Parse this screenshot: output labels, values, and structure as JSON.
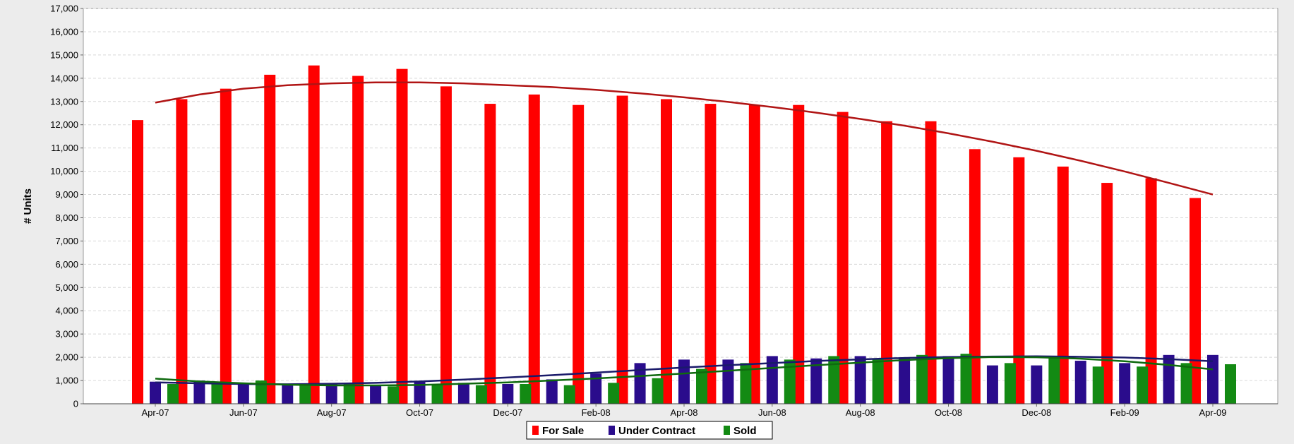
{
  "chart_data": {
    "type": "bar",
    "title": "",
    "xlabel": "",
    "ylabel": "# Units",
    "ylim": [
      0,
      17000
    ],
    "y_ticks": [
      0,
      1000,
      2000,
      3000,
      4000,
      5000,
      6000,
      7000,
      8000,
      9000,
      10000,
      11000,
      12000,
      13000,
      14000,
      15000,
      16000,
      17000
    ],
    "y_tick_labels": [
      "0",
      "1,000",
      "2,000",
      "3,000",
      "4,000",
      "5,000",
      "6,000",
      "7,000",
      "8,000",
      "9,000",
      "10,000",
      "11,000",
      "12,000",
      "13,000",
      "14,000",
      "15,000",
      "16,000",
      "17,000"
    ],
    "categories": [
      "Apr-07",
      "May-07",
      "Jun-07",
      "Jul-07",
      "Aug-07",
      "Sep-07",
      "Oct-07",
      "Nov-07",
      "Dec-07",
      "Jan-08",
      "Feb-08",
      "Mar-08",
      "Apr-08",
      "May-08",
      "Jun-08",
      "Jul-08",
      "Aug-08",
      "Sep-08",
      "Oct-08",
      "Nov-08",
      "Dec-08",
      "Jan-09",
      "Feb-09",
      "Mar-09",
      "Apr-09"
    ],
    "x_tick_labels": [
      "Apr-07",
      "",
      "Jun-07",
      "",
      "Aug-07",
      "",
      "Oct-07",
      "",
      "Dec-07",
      "",
      "Feb-08",
      "",
      "Apr-08",
      "",
      "Jun-08",
      "",
      "Aug-08",
      "",
      "Oct-08",
      "",
      "Dec-08",
      "",
      "Feb-09",
      "",
      "Apr-09"
    ],
    "series": [
      {
        "name": "For Sale",
        "color": "#ff0000",
        "values": [
          12200,
          13100,
          13550,
          14150,
          14550,
          14100,
          14400,
          13650,
          12900,
          13300,
          12850,
          13250,
          13100,
          12900,
          12850,
          12850,
          12550,
          12150,
          12150,
          10950,
          10600,
          10200,
          9500,
          9700,
          8850
        ]
      },
      {
        "name": "Under Contract",
        "color": "#2a0c8c",
        "values": [
          950,
          1000,
          850,
          850,
          850,
          800,
          950,
          900,
          850,
          1050,
          1300,
          1750,
          1900,
          1900,
          2050,
          1950,
          2050,
          1950,
          2050,
          1650,
          1650,
          1850,
          1750,
          2100,
          2100
        ]
      },
      {
        "name": "Sold",
        "color": "#138a13",
        "values": [
          850,
          950,
          1000,
          850,
          850,
          750,
          850,
          800,
          850,
          800,
          900,
          1100,
          1500,
          1750,
          1900,
          2050,
          1950,
          2100,
          2150,
          1750,
          2000,
          1600,
          1600,
          1750,
          1700
        ]
      }
    ],
    "trend_lines": [
      {
        "series": "For Sale",
        "color": "#b01414",
        "values": [
          12950,
          13300,
          13550,
          13700,
          13780,
          13820,
          13820,
          13780,
          13700,
          13620,
          13500,
          13350,
          13180,
          12980,
          12760,
          12520,
          12250,
          11960,
          11630,
          11270,
          10880,
          10450,
          9990,
          9500,
          9000
        ]
      },
      {
        "series": "Under Contract",
        "color": "#1a1a6a",
        "values": [
          920,
          880,
          850,
          840,
          860,
          900,
          960,
          1040,
          1130,
          1230,
          1340,
          1450,
          1560,
          1660,
          1750,
          1840,
          1910,
          1970,
          2010,
          2030,
          2040,
          2020,
          1990,
          1920,
          1830
        ]
      },
      {
        "series": "Sold",
        "color": "#0f6a0f",
        "values": [
          1080,
          960,
          880,
          820,
          790,
          790,
          810,
          860,
          920,
          1000,
          1090,
          1190,
          1300,
          1420,
          1540,
          1660,
          1770,
          1880,
          1960,
          2010,
          2000,
          1940,
          1830,
          1670,
          1480
        ]
      }
    ],
    "legend": {
      "position": "bottom-center"
    },
    "grid": true,
    "colors": {
      "plot_bg": "#ffffff",
      "page_bg": "#ececec",
      "grid": "#d8d8d8"
    }
  }
}
